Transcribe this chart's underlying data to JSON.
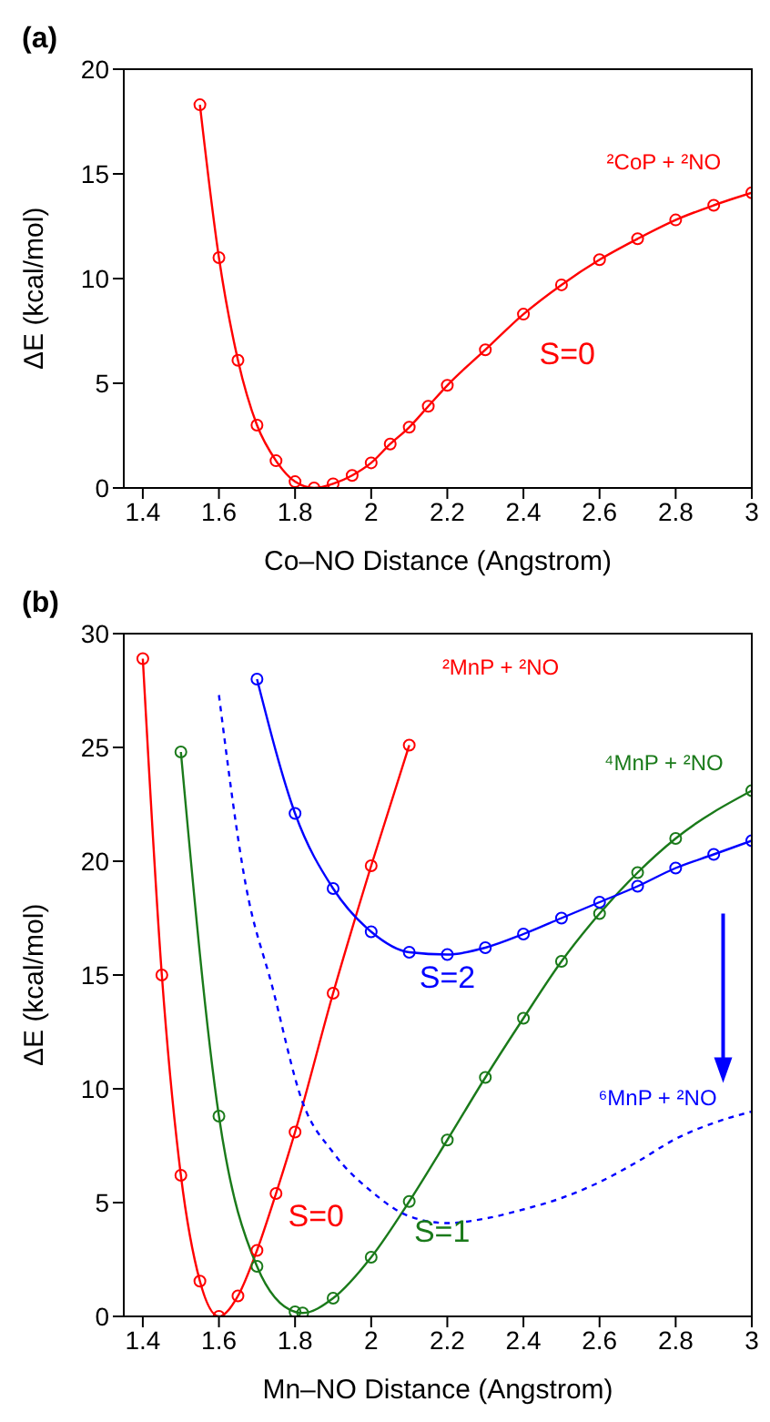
{
  "chart_data": [
    {
      "type": "line",
      "title": "(a)",
      "xlabel": "Co–NO Distance (Angstrom)",
      "ylabel": "ΔE (kcal/mol)",
      "xlim": [
        1.35,
        3
      ],
      "xticks": [
        1.4,
        1.6,
        1.8,
        2,
        2.2,
        2.4,
        2.6,
        2.8,
        3
      ],
      "ylim": [
        0,
        20
      ],
      "yticks": [
        0,
        5,
        10,
        15,
        20
      ],
      "grid": false,
      "legend": false,
      "marker": "circle",
      "line_style": "solid",
      "annotations": [
        "²CoP + ²NO"
      ],
      "series": [
        {
          "name": "S=0",
          "color": "#ff0000",
          "x": [
            1.55,
            1.6,
            1.65,
            1.7,
            1.75,
            1.8,
            1.85,
            1.9,
            1.95,
            2.0,
            2.05,
            2.1,
            2.15,
            2.2,
            2.3,
            2.4,
            2.5,
            2.6,
            2.7,
            2.8,
            2.9,
            3.0
          ],
          "values": [
            18.3,
            11.0,
            6.1,
            3.0,
            1.3,
            0.3,
            0,
            0.2,
            0.6,
            1.2,
            2.1,
            2.9,
            3.9,
            4.9,
            6.6,
            8.3,
            9.7,
            10.9,
            11.9,
            12.8,
            13.5,
            14.1
          ]
        }
      ]
    },
    {
      "type": "line",
      "title": "(b)",
      "xlabel": "Mn–NO Distance (Angstrom)",
      "ylabel": "ΔE (kcal/mol)",
      "xlim": [
        1.35,
        3
      ],
      "xticks": [
        1.4,
        1.6,
        1.8,
        2,
        2.2,
        2.4,
        2.6,
        2.8,
        3
      ],
      "ylim": [
        0,
        30
      ],
      "yticks": [
        0,
        5,
        10,
        15,
        20,
        25,
        30
      ],
      "grid": false,
      "legend": false,
      "marker": "circle",
      "line_style": "solid",
      "annotations": [
        "²MnP + ²NO",
        "⁴MnP + ²NO",
        "⁶MnP + ²NO"
      ],
      "series": [
        {
          "name": "S=0",
          "color": "#ff0000",
          "x": [
            1.4,
            1.45,
            1.5,
            1.55,
            1.6,
            1.65,
            1.7,
            1.75,
            1.8,
            1.9,
            2.0,
            2.1
          ],
          "values": [
            28.9,
            15.0,
            6.2,
            1.55,
            0,
            0.9,
            2.9,
            5.4,
            8.1,
            14.2,
            19.8,
            25.1
          ]
        },
        {
          "name": "S=1",
          "color": "#1a7a1a",
          "x": [
            1.5,
            1.6,
            1.7,
            1.8,
            1.82,
            1.9,
            2.0,
            2.1,
            2.2,
            2.3,
            2.4,
            2.5,
            2.6,
            2.7,
            2.8,
            3.0
          ],
          "values": [
            24.8,
            8.8,
            2.2,
            0.2,
            0.15,
            0.8,
            2.6,
            5.05,
            7.75,
            10.5,
            13.1,
            15.6,
            17.7,
            19.5,
            21.0,
            23.1
          ]
        },
        {
          "name": "S=2",
          "color": "#0000ff",
          "x": [
            1.7,
            1.8,
            1.9,
            2.0,
            2.1,
            2.2,
            2.3,
            2.4,
            2.5,
            2.6,
            2.7,
            2.8,
            2.9,
            3.0
          ],
          "values": [
            28.0,
            22.1,
            18.8,
            16.9,
            16.0,
            15.9,
            16.2,
            16.8,
            17.5,
            18.2,
            18.9,
            19.7,
            20.3,
            20.9
          ]
        },
        {
          "color": "#0000ff",
          "marker": "none",
          "line_style": "dashed",
          "x": [
            1.6,
            1.67,
            1.74,
            1.82,
            1.9,
            2.0,
            2.1,
            2.2,
            2.3,
            2.4,
            2.5,
            2.6,
            2.7,
            2.8,
            2.9,
            3.0
          ],
          "values": [
            27.3,
            19.0,
            14.5,
            9.4,
            7.2,
            5.5,
            4.4,
            4.1,
            4.3,
            4.7,
            5.2,
            5.9,
            6.8,
            7.8,
            8.5,
            9.0
          ]
        }
      ]
    }
  ]
}
